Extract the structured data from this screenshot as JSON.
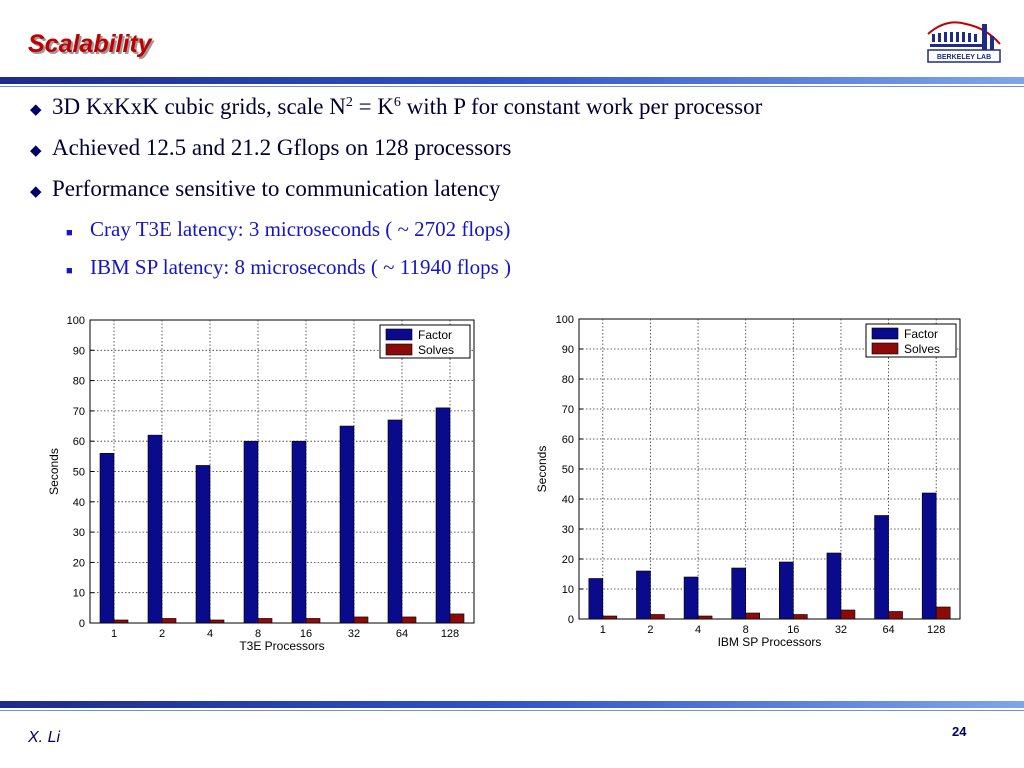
{
  "slide": {
    "title": "Scalability",
    "logo_text": "BERKELEY LAB",
    "author": "X. Li",
    "page_number": "24"
  },
  "bullets": [
    {
      "text_before": "3D KxKxK cubic grids, scale N",
      "sup1": "2",
      "text_mid": " = K",
      "sup2": "6",
      "text_after": " with P for constant work per processor"
    },
    {
      "text": "Achieved 12.5 and 21.2 Gflops on 128 processors"
    },
    {
      "text": "Performance sensitive to communication latency"
    }
  ],
  "sub_bullets": [
    {
      "text": "Cray T3E latency: 3 microseconds ( ~ 2702 flops)"
    },
    {
      "text": "IBM SP latency: 8 microseconds  ( ~ 11940 flops )"
    }
  ],
  "colors": {
    "title": "#c00000",
    "factor": "#0a0a8c",
    "solves": "#8b0a0a",
    "sub_bullet_text": "#1515c8",
    "bar_rule": "#2f55c8"
  },
  "chart_data": [
    {
      "type": "bar",
      "categories": [
        "1",
        "2",
        "4",
        "8",
        "16",
        "32",
        "64",
        "128"
      ],
      "series": [
        {
          "name": "Factor",
          "values": [
            56,
            62,
            52,
            60,
            60,
            65,
            67,
            71
          ]
        },
        {
          "name": "Solves",
          "values": [
            1,
            1.5,
            1,
            1.5,
            1.5,
            2,
            2,
            3
          ]
        }
      ],
      "title": "",
      "xlabel": "T3E Processors",
      "ylabel": "Seconds",
      "ylim": [
        0,
        100
      ],
      "yticks": [
        0,
        10,
        20,
        30,
        40,
        50,
        60,
        70,
        80,
        90,
        100
      ],
      "grid": true,
      "legend": "top-right"
    },
    {
      "type": "bar",
      "categories": [
        "1",
        "2",
        "4",
        "8",
        "16",
        "32",
        "64",
        "128"
      ],
      "series": [
        {
          "name": "Factor",
          "values": [
            13.5,
            16,
            14,
            17,
            19,
            22,
            34.5,
            42
          ]
        },
        {
          "name": "Solves",
          "values": [
            1,
            1.5,
            1,
            2,
            1.5,
            3,
            2.5,
            4
          ]
        }
      ],
      "title": "",
      "xlabel": "IBM SP Processors",
      "ylabel": "Seconds",
      "ylim": [
        0,
        100
      ],
      "yticks": [
        0,
        10,
        20,
        30,
        40,
        50,
        60,
        70,
        80,
        90,
        100
      ],
      "grid": true,
      "legend": "top-right"
    }
  ]
}
